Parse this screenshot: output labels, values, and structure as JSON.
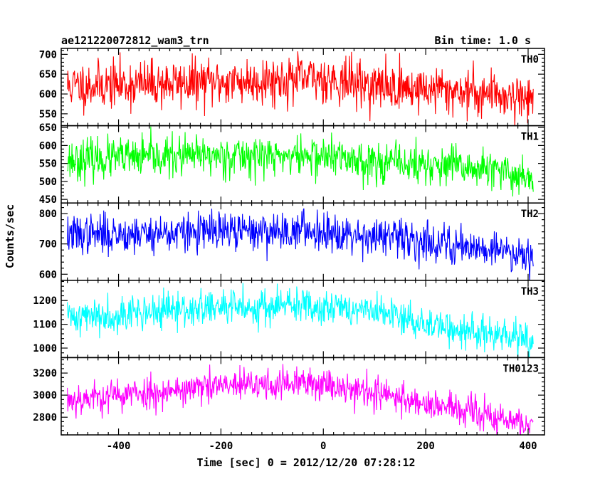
{
  "chart_data": {
    "type": "line",
    "title": "ae121220072812_wam3_trn",
    "subtitle": "Bin time: 1.0 s",
    "xlabel": "Time [sec] 0 = 2012/12/20 07:28:12",
    "ylabel": "Counts/sec",
    "xlim": [
      -512,
      432
    ],
    "x_range": [
      -500,
      410
    ],
    "x_ticks": [
      -400,
      -200,
      0,
      200,
      400
    ],
    "grid": false,
    "panels": [
      {
        "name": "TH0",
        "color": "#ff0000",
        "ylim": [
          520,
          715
        ],
        "y_ticks": [
          550,
          600,
          650,
          700
        ],
        "trend": [
          [
            -500,
            620
          ],
          [
            -200,
            630
          ],
          [
            0,
            640
          ],
          [
            100,
            620
          ],
          [
            300,
            605
          ],
          [
            410,
            590
          ]
        ],
        "noise": 30,
        "seed": 11
      },
      {
        "name": "TH1",
        "color": "#00ff00",
        "ylim": [
          440,
          655
        ],
        "y_ticks": [
          450,
          500,
          550,
          600,
          650
        ],
        "trend": [
          [
            -500,
            560
          ],
          [
            -200,
            572
          ],
          [
            0,
            570
          ],
          [
            100,
            555
          ],
          [
            300,
            535
          ],
          [
            410,
            512
          ]
        ],
        "noise": 28,
        "seed": 23
      },
      {
        "name": "TH2",
        "color": "#0000ff",
        "ylim": [
          580,
          835
        ],
        "y_ticks": [
          600,
          700,
          800
        ],
        "trend": [
          [
            -500,
            730
          ],
          [
            -200,
            740
          ],
          [
            0,
            745
          ],
          [
            100,
            725
          ],
          [
            300,
            690
          ],
          [
            410,
            665
          ]
        ],
        "noise": 32,
        "seed": 37
      },
      {
        "name": "TH3",
        "color": "#00ffff",
        "ylim": [
          960,
          1285
        ],
        "y_ticks": [
          1000,
          1100,
          1200
        ],
        "trend": [
          [
            -500,
            1130
          ],
          [
            -200,
            1170
          ],
          [
            0,
            1180
          ],
          [
            100,
            1150
          ],
          [
            250,
            1080
          ],
          [
            410,
            1030
          ]
        ],
        "noise": 38,
        "seed": 41
      },
      {
        "name": "TH0123",
        "color": "#ff00ff",
        "ylim": [
          2640,
          3340
        ],
        "y_ticks": [
          2800,
          3000,
          3200
        ],
        "trend": [
          [
            -500,
            2960
          ],
          [
            -200,
            3080
          ],
          [
            0,
            3110
          ],
          [
            100,
            3020
          ],
          [
            250,
            2880
          ],
          [
            410,
            2720
          ]
        ],
        "noise": 75,
        "seed": 53
      }
    ]
  }
}
